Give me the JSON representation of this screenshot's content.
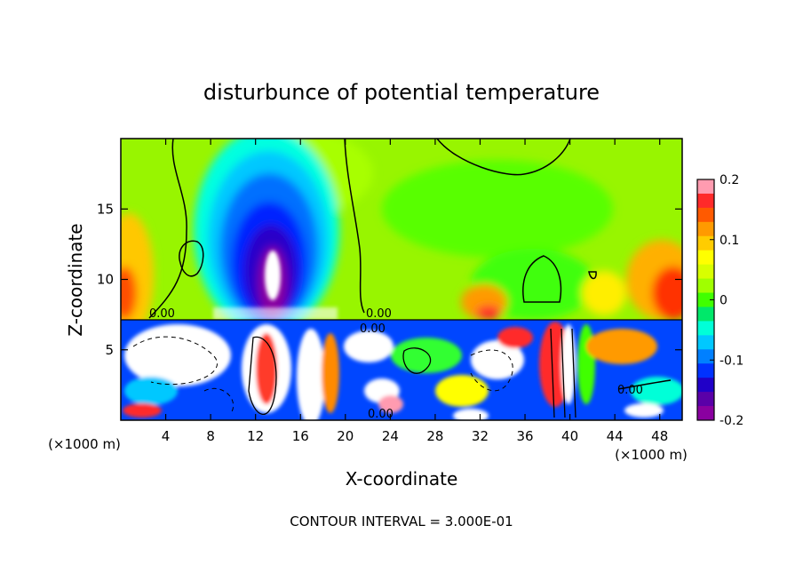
{
  "chart_data": {
    "type": "heatmap",
    "title": "disturbunce of potential temperature",
    "xlabel": "X-coordinate",
    "ylabel": "Z-coordinate",
    "x_unit_left": "(×1000 m)",
    "x_unit_right": "(×1000 m)",
    "xlim": [
      0,
      50
    ],
    "ylim": [
      0,
      20
    ],
    "x_ticks": [
      4,
      8,
      12,
      16,
      20,
      24,
      28,
      32,
      36,
      40,
      44,
      48
    ],
    "y_ticks": [
      5,
      10,
      15
    ],
    "colorbar": {
      "range": [
        -0.2,
        0.2
      ],
      "tick_values": [
        0.2,
        0.1,
        0,
        -0.1,
        -0.2
      ],
      "tick_labels": [
        "0.2",
        "0.1",
        "0",
        "-0.1",
        "-0.2"
      ],
      "colors": [
        "#ff9bb0",
        "#ff2a2a",
        "#ff5a00",
        "#ff9a00",
        "#ffcc00",
        "#ffff00",
        "#d8ff00",
        "#a0ff00",
        "#40ff00",
        "#00e86a",
        "#00ffd8",
        "#00c8ff",
        "#0080ff",
        "#0032ff",
        "#2000c8",
        "#5a00a8",
        "#8a00a0"
      ]
    },
    "contour_labels": [
      "0.00",
      "0.00",
      "0.00",
      "0.00",
      "0.00"
    ],
    "footer": "CONTOUR INTERVAL = 3.000E-01"
  }
}
